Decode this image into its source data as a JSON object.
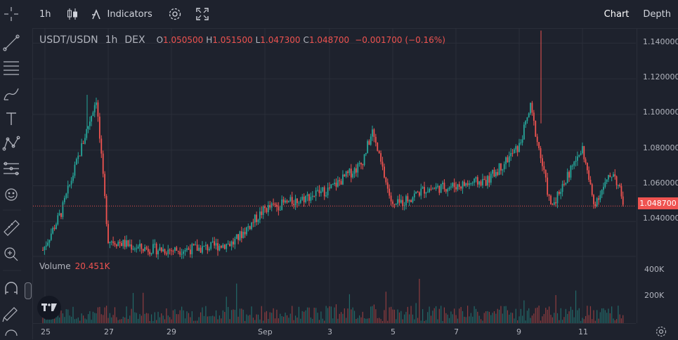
{
  "toolbar": {
    "interval": "1h",
    "indicators_label": "Indicators",
    "chart_tab": "Chart",
    "depth_tab": "Depth"
  },
  "legend": {
    "symbol": "USDT/USDN",
    "interval": "1h",
    "exchange": "DEX",
    "o_label": "O",
    "o_value": "1.050500",
    "h_label": "H",
    "h_value": "1.051500",
    "l_label": "L",
    "l_value": "1.047300",
    "c_label": "C",
    "c_value": "1.048700",
    "change": "−0.001700 (−0.16%)"
  },
  "volume_legend": {
    "label": "Volume",
    "value": "20.451K"
  },
  "price_axis": {
    "labels": [
      "1.140000",
      "1.120000",
      "1.100000",
      "1.080000",
      "1.060000",
      "1.040000"
    ],
    "last_price": "1.048700"
  },
  "volume_axis": {
    "labels": [
      "400K",
      "200K"
    ]
  },
  "time_axis": {
    "labels": [
      "25",
      "27",
      "29",
      "Sep",
      "3",
      "5",
      "7",
      "9",
      "11"
    ]
  },
  "icons": {
    "crosshair": "crosshair-icon",
    "trendline": "trend-line-icon",
    "horizontal": "horizontal-lines-icon",
    "brush": "brush-icon",
    "text": "text-icon",
    "pattern": "pattern-icon",
    "measure": "prediction-icon",
    "emoji": "emoji-icon",
    "ruler": "ruler-icon",
    "zoom": "zoom-in-icon",
    "magnet": "magnet-icon",
    "lock": "lock-drawing-icon",
    "trash": "trash-icon",
    "settings": "gear-icon"
  },
  "colors": {
    "up": "#26a69a",
    "down": "#ef5350",
    "background": "#1e222d",
    "grid": "#2a2e39"
  },
  "chart_data": {
    "type": "candlestick",
    "y_range": [
      1.022,
      1.148
    ],
    "series_summary": [
      {
        "x": "Aug 24",
        "y": 1.024
      },
      {
        "x": "Aug 25",
        "y": 1.045
      },
      {
        "x": "Aug 26",
        "y": 1.088
      },
      {
        "x": "Aug 26",
        "y": 1.109
      },
      {
        "x": "Aug 27",
        "y": 1.03
      },
      {
        "x": "Aug 28",
        "y": 1.025
      },
      {
        "x": "Aug 29",
        "y": 1.024
      },
      {
        "x": "Aug 30",
        "y": 1.025
      },
      {
        "x": "Aug 31",
        "y": 1.028
      },
      {
        "x": "Sep 1",
        "y": 1.047
      },
      {
        "x": "Sep 2",
        "y": 1.052
      },
      {
        "x": "Sep 3",
        "y": 1.058
      },
      {
        "x": "Sep 4",
        "y": 1.072
      },
      {
        "x": "Sep 4",
        "y": 1.09
      },
      {
        "x": "Sep 5",
        "y": 1.048
      },
      {
        "x": "Sep 6",
        "y": 1.058
      },
      {
        "x": "Sep 7",
        "y": 1.06
      },
      {
        "x": "Sep 8",
        "y": 1.063
      },
      {
        "x": "Sep 9",
        "y": 1.082
      },
      {
        "x": "Sep 9",
        "y": 1.104
      },
      {
        "x": "Sep 10",
        "y": 1.048
      },
      {
        "x": "Sep 11",
        "y": 1.081
      },
      {
        "x": "Sep 11",
        "y": 1.05
      },
      {
        "x": "Sep 12",
        "y": 1.068
      },
      {
        "x": "Sep 12",
        "y": 1.049
      }
    ]
  }
}
